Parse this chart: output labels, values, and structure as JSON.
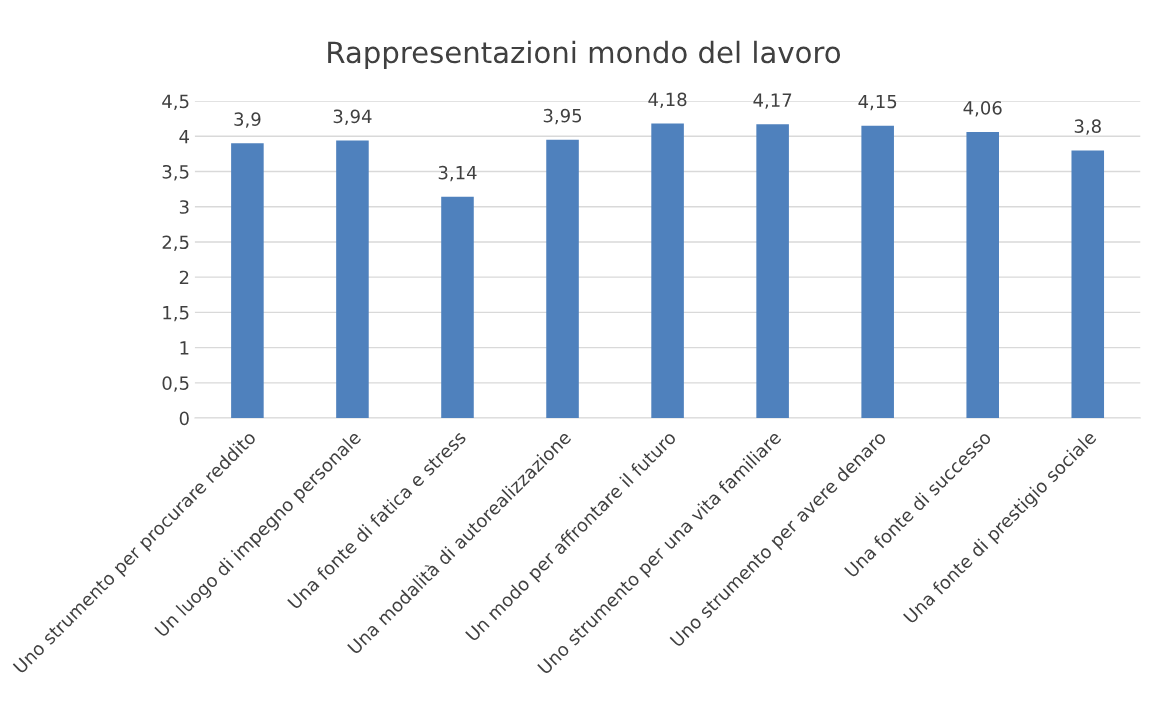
{
  "chart_data": {
    "type": "bar",
    "title": "Rappresentazioni mondo del lavoro",
    "categories": [
      "Uno strumento per procurare reddito",
      "Un luogo di impegno personale",
      "Una fonte di fatica e stress",
      "Una modalità di autorealizzazione",
      "Un modo per affrontare il futuro",
      "Uno strumento per una vita familiare",
      "Uno strumento per avere denaro",
      "Una fonte di successo",
      "Una fonte di prestigio sociale"
    ],
    "values": [
      3.9,
      3.94,
      3.14,
      3.95,
      4.18,
      4.17,
      4.15,
      4.06,
      3.8
    ],
    "value_labels": [
      "3,9",
      "3,94",
      "3,14",
      "3,95",
      "4,18",
      "4,17",
      "4,15",
      "4,06",
      "3,8"
    ],
    "color": "#4f81bd",
    "ylim": [
      0,
      4.5
    ],
    "yticks": [
      0,
      {
        "value": 0.5,
        "label": "0,5"
      },
      1,
      {
        "value": 1.5,
        "label": "1,5"
      },
      2,
      {
        "value": 2.5,
        "label": "2,5"
      },
      3,
      {
        "value": 3.5,
        "label": "3,5"
      },
      4,
      {
        "value": 4.5,
        "label": "4,5"
      }
    ],
    "grid": "y",
    "legend": false
  }
}
